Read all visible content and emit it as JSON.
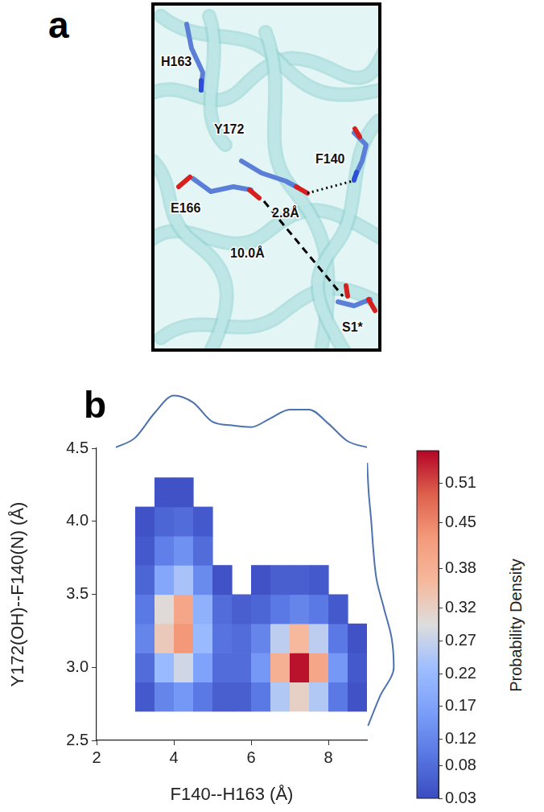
{
  "panel_labels": [
    "a",
    "b"
  ],
  "diagram": {
    "residues": [
      "H163",
      "Y172",
      "F140",
      "E166",
      "S1*"
    ],
    "distances": [
      "2.8Å",
      "10.0Å"
    ]
  },
  "chart_data": [
    {
      "type": "heatmap",
      "x_label": "F140--H163 (Å)",
      "y_label": "Y172(OH)--F140(N) (Å)",
      "xlim": [
        2,
        9
      ],
      "xticks": [
        2,
        4,
        6,
        8
      ],
      "ylim": [
        2.5,
        4.5
      ],
      "yticks": [
        2.5,
        {
          "value": 3,
          "label": "3.0"
        },
        3.5,
        {
          "value": 4,
          "label": "4.0"
        },
        4.5
      ],
      "grid": false,
      "cells": {
        "x": [
          2.75,
          3.25,
          3.75,
          4.25,
          4.75,
          5.25,
          5.75,
          6.25,
          6.75,
          7.25,
          7.75,
          8.25,
          8.75
        ],
        "y": [
          2.8,
          3.0,
          3.2,
          3.4,
          3.6,
          3.8,
          4.0,
          4.2
        ],
        "values": [
          [
            null,
            0.05,
            0.12,
            0.15,
            0.1,
            0.06,
            0.06,
            0.1,
            0.25,
            0.32,
            0.25,
            0.1,
            0.04
          ],
          [
            null,
            0.08,
            0.22,
            0.28,
            0.17,
            0.08,
            0.08,
            0.15,
            0.38,
            0.55,
            0.4,
            0.15,
            0.05
          ],
          [
            null,
            0.12,
            0.33,
            0.43,
            0.22,
            0.09,
            0.08,
            0.12,
            0.26,
            0.36,
            0.26,
            0.1,
            0.04
          ],
          [
            null,
            0.1,
            0.3,
            0.4,
            0.2,
            0.08,
            0.06,
            0.07,
            0.1,
            0.12,
            0.1,
            0.05,
            null
          ],
          [
            null,
            0.07,
            0.18,
            0.24,
            0.13,
            0.04,
            null,
            0.04,
            0.06,
            0.06,
            0.05,
            null,
            null
          ],
          [
            null,
            0.05,
            0.11,
            0.14,
            0.08,
            null,
            null,
            null,
            null,
            null,
            null,
            null,
            null
          ],
          [
            null,
            0.04,
            0.07,
            0.08,
            0.05,
            null,
            null,
            null,
            null,
            null,
            null,
            null,
            null
          ],
          [
            null,
            null,
            0.04,
            0.04,
            null,
            null,
            null,
            null,
            null,
            null,
            null,
            null,
            null
          ]
        ]
      },
      "colorbar": {
        "label": "Probability Density",
        "range": [
          0.03,
          0.56
        ],
        "ticks": [
          0.03,
          0.08,
          0.12,
          0.17,
          0.22,
          0.27,
          0.32,
          0.38,
          0.45,
          0.51
        ]
      }
    },
    {
      "type": "line",
      "tick_labels": false,
      "color": "#4c72b0",
      "x": [
        2.5,
        3,
        3.5,
        4,
        4.5,
        5,
        5.5,
        6,
        6.5,
        7,
        7.5,
        8,
        8.5,
        9
      ],
      "values": [
        0.005,
        0.06,
        0.2,
        0.3,
        0.26,
        0.15,
        0.13,
        0.12,
        0.17,
        0.22,
        0.22,
        0.14,
        0.04,
        0.005
      ],
      "xlim": [
        2,
        9
      ],
      "ylim": [
        0,
        0.32
      ]
    },
    {
      "type": "line",
      "orientation": "horizontal",
      "tick_labels": false,
      "color": "#4c72b0",
      "y": [
        2.6,
        2.8,
        3.0,
        3.2,
        3.4,
        3.6,
        3.8,
        4.0,
        4.2,
        4.4
      ],
      "values": [
        0.05,
        0.6,
        1.25,
        1.15,
        0.8,
        0.45,
        0.3,
        0.2,
        0.08,
        0.01
      ],
      "xlim": [
        0,
        1.35
      ],
      "ylim": [
        2.5,
        4.5
      ]
    }
  ]
}
